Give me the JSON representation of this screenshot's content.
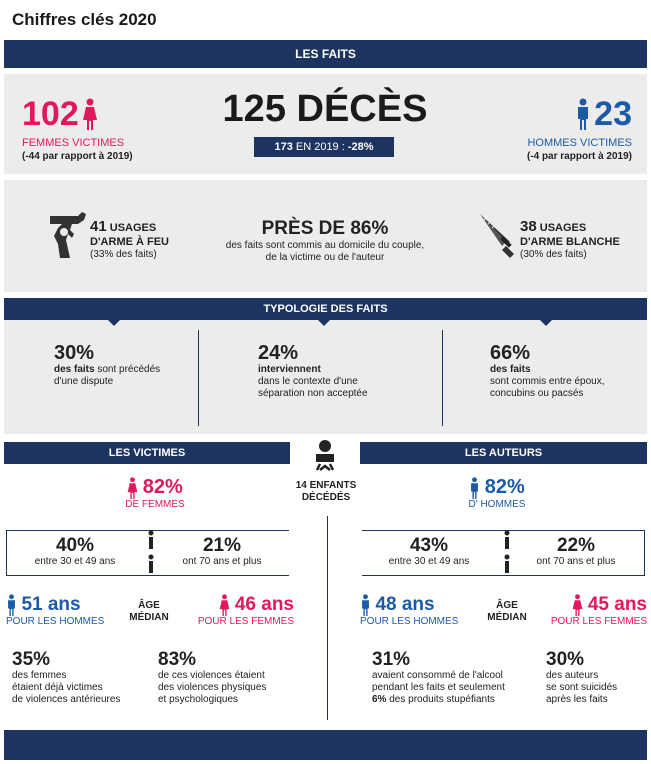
{
  "page_title": "Chiffres clés 2020",
  "faits": {
    "header": "LES FAITS",
    "femmes": {
      "number": "102",
      "label": "FEMMES VICTIMES",
      "sub": "(-44 par rapport à 2019)"
    },
    "deces": {
      "main": "125 DÉCÈS",
      "badge_num": "173",
      "badge_mid": " EN 2019 : ",
      "badge_pct": "-28%"
    },
    "hommes": {
      "number": "23",
      "label": "HOMMES VICTIMES",
      "sub": "(-4 par rapport à 2019)"
    }
  },
  "armes": {
    "feu": {
      "num": "41",
      "word": " USAGES",
      "line2": "D'ARME À FEU",
      "line3": "(33% des faits)"
    },
    "domicile": {
      "title": "PRÈS DE 86%",
      "line1": "des faits sont commis au domicile du couple,",
      "line2": "de la victime ou de l'auteur"
    },
    "blanche": {
      "num": "38",
      "word": " USAGES",
      "line2": "D'ARME BLANCHE",
      "line3": "(30% des faits)"
    }
  },
  "typologie": {
    "header": "TYPOLOGIE DES FAITS",
    "items": [
      {
        "pct": "30%",
        "bold": "des faits",
        "rest": " sont précédés",
        "line2": "d'une dispute",
        "line3": ""
      },
      {
        "pct": "24%",
        "bold": "interviennent",
        "rest": "",
        "line2": "dans le contexte d'une",
        "line3": "séparation non acceptée"
      },
      {
        "pct": "66%",
        "bold": "des faits",
        "rest": "",
        "line2": "sont commis entre époux,",
        "line3": "concubins ou pacsés"
      }
    ]
  },
  "enfants": {
    "line1": "14 ENFANTS",
    "line2": "DÉCÉDÉS"
  },
  "victimes": {
    "header": "LES VICTIMES",
    "pct": "82%",
    "pct_label": "DE FEMMES",
    "age1": {
      "pct": "40%",
      "label": "entre 30 et 49 ans"
    },
    "age2": {
      "pct": "21%",
      "label": "ont 70 ans et plus"
    },
    "median_h": {
      "value": "51 ans",
      "label": "POUR LES HOMMES"
    },
    "median_word1": "ÂGE",
    "median_word2": "MÉDIAN",
    "median_f": {
      "value": "46 ans",
      "label": "POUR LES FEMMES"
    },
    "stat1": {
      "pct": "35%",
      "l1": "des femmes",
      "l2": "étaient déjà victimes",
      "l3": "de violences antérieures"
    },
    "stat2": {
      "pct": "83%",
      "l1": "de ces violences étaient",
      "l2": "des violences physiques",
      "l3": "et psychologiques"
    }
  },
  "auteurs": {
    "header": "LES AUTEURS",
    "pct": "82%",
    "pct_label": "D' HOMMES",
    "age1": {
      "pct": "43%",
      "label": "entre 30 et 49 ans"
    },
    "age2": {
      "pct": "22%",
      "label": "ont 70 ans et plus"
    },
    "median_h": {
      "value": "48 ans",
      "label": "POUR LES HOMMES"
    },
    "median_word1": "ÂGE",
    "median_word2": "MÉDIAN",
    "median_f": {
      "value": "45 ans",
      "label": "POUR LES FEMMES"
    },
    "stat1": {
      "pct": "31%",
      "l1": "avaient consommé de l'alcool",
      "l2": "pendant les faits et seulement",
      "l3_bold": "6%",
      "l3": " des produits stupéfiants"
    },
    "stat2": {
      "pct": "30%",
      "l1": "des auteurs",
      "l2": "se sont suicidés",
      "l3": "après les faits"
    }
  },
  "colors": {
    "navy": "#1d3461",
    "pink": "#e2185b",
    "blue": "#1d5aa6",
    "grey": "#ececec"
  },
  "icons": [
    "woman-icon",
    "man-icon",
    "gun-icon",
    "knife-icon",
    "baby-icon"
  ]
}
